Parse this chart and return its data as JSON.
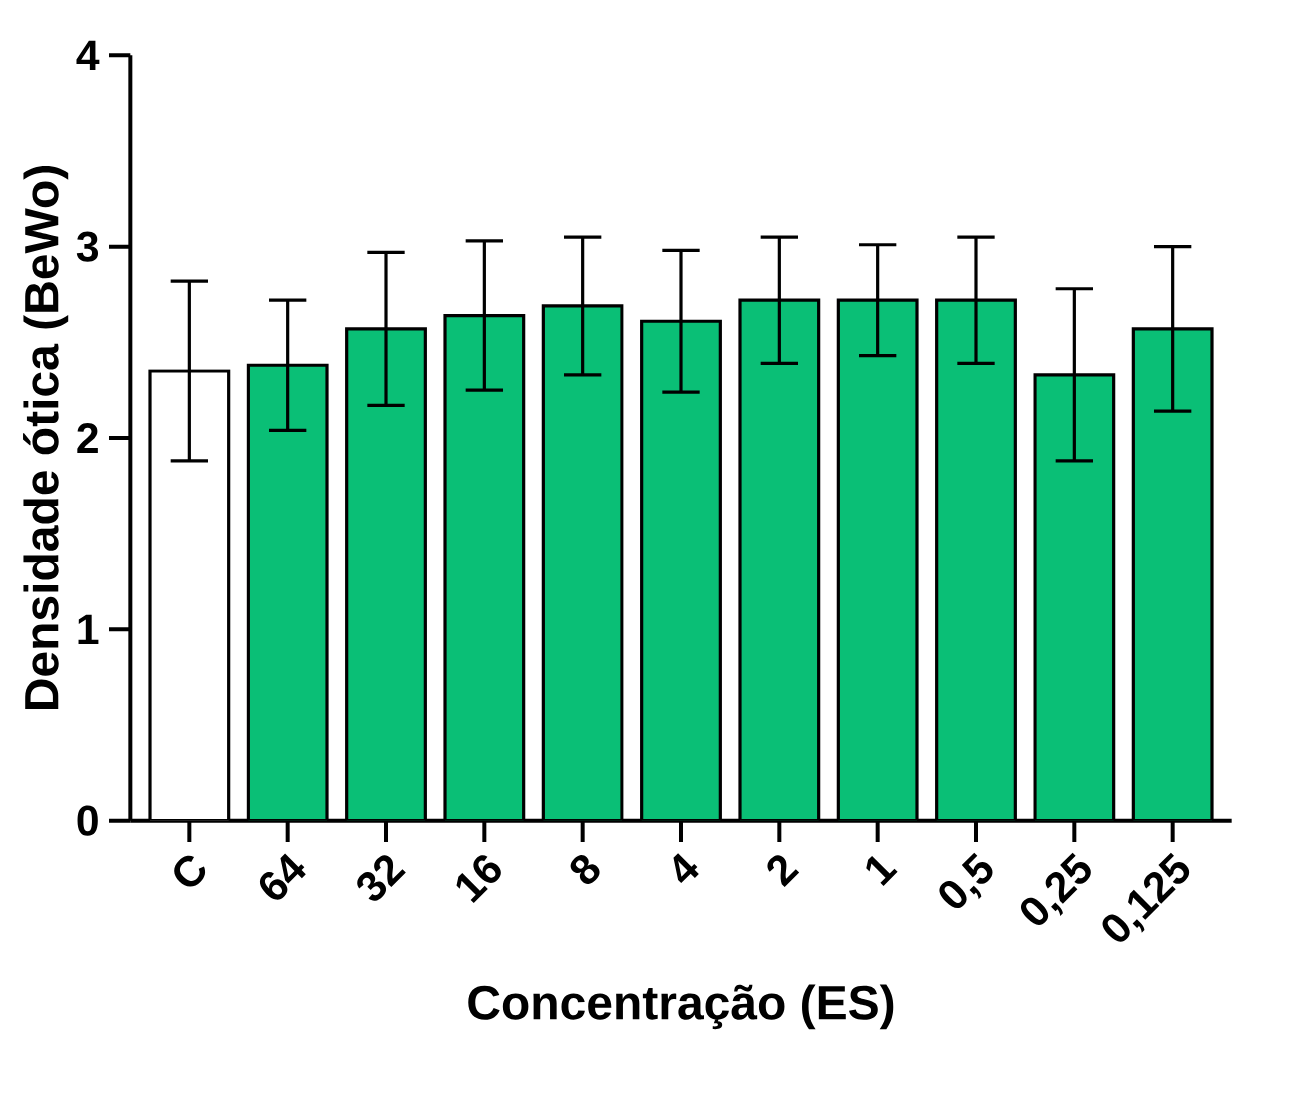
{
  "chart_data": {
    "type": "bar",
    "xlabel": "Concentração (ES)",
    "ylabel": "Densidade ótica (BeWo)",
    "categories": [
      "C",
      "64",
      "32",
      "16",
      "8",
      "4",
      "2",
      "1",
      "0,5",
      "0,25",
      "0,125"
    ],
    "values": [
      2.35,
      2.38,
      2.57,
      2.64,
      2.69,
      2.61,
      2.72,
      2.72,
      2.72,
      2.33,
      2.57
    ],
    "errors": [
      0.47,
      0.34,
      0.4,
      0.39,
      0.36,
      0.37,
      0.33,
      0.29,
      0.33,
      0.45,
      0.43
    ],
    "colors": [
      "#ffffff",
      "#0abf76",
      "#0abf76",
      "#0abf76",
      "#0abf76",
      "#0abf76",
      "#0abf76",
      "#0abf76",
      "#0abf76",
      "#0abf76",
      "#0abf76"
    ],
    "ylim": [
      0,
      4
    ],
    "yticks": [
      0,
      1,
      2,
      3,
      4
    ],
    "grid": false
  }
}
